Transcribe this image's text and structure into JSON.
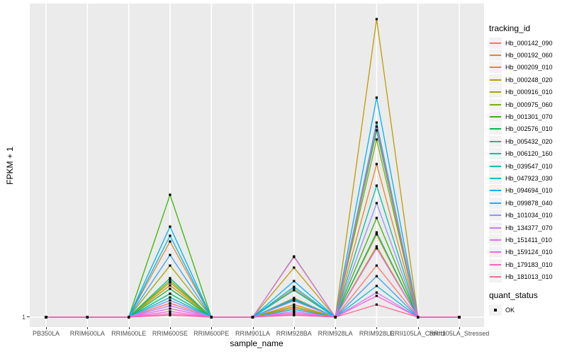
{
  "y_axis": {
    "title": "FPKM + 1",
    "tick_label": "1"
  },
  "x_axis": {
    "title": "sample_name"
  },
  "legend": {
    "tracking_title": "tracking_id",
    "quant_title": "quant_status",
    "quant_items": [
      {
        "label": "OK",
        "marker": "black-square"
      }
    ]
  },
  "colors": {
    "panel_background": "#EBEBEB",
    "gridline": "#FFFFFF",
    "tick_text": "#4D4D4D",
    "point": "#000000",
    "legend_key_background": "#F2F2F2"
  },
  "chart_data": {
    "type": "line",
    "title": "",
    "xlabel": "sample_name",
    "ylabel": "FPKM + 1",
    "ylim": [
      1,
      105
    ],
    "y_ticks": [
      1
    ],
    "grid": "vertical white gridline per category, horizontal white gridline at y=1, gray panel",
    "legend_position": "right",
    "point_shape": "filled black square (quant_status = OK)",
    "x": [
      "PB350LA",
      "RRIM600LA",
      "RRIM600LE",
      "RRIM600SE",
      "RRIM600PE",
      "RRIM901LA",
      "RRIM928BA",
      "RRIM928LA",
      "RRIM928LE",
      "RRII105LA_Control",
      "RRII105LA_Stressed"
    ],
    "series": [
      {
        "name": "Hb_000142_090",
        "color": "#F8766D",
        "values": [
          1,
          1,
          1,
          5.9,
          1,
          1,
          4.2,
          1,
          19.0,
          1,
          1
        ]
      },
      {
        "name": "Hb_000192_060",
        "color": "#EA8331",
        "values": [
          1,
          1,
          1,
          27.4,
          1,
          1,
          10.9,
          1,
          54.4,
          1,
          1
        ]
      },
      {
        "name": "Hb_000209_010",
        "color": "#D89000",
        "values": [
          1,
          1,
          1,
          12.1,
          1,
          1,
          5.4,
          1,
          29.9,
          1,
          1
        ]
      },
      {
        "name": "Hb_000248_020",
        "color": "#C09B00",
        "values": [
          1,
          1,
          1,
          13.1,
          1,
          1,
          18.3,
          1,
          105,
          1,
          1
        ]
      },
      {
        "name": "Hb_000916_010",
        "color": "#A3A500",
        "values": [
          1,
          1,
          1,
          19.0,
          1,
          1,
          7.7,
          1,
          25.7,
          1,
          1
        ]
      },
      {
        "name": "Hb_000975_060",
        "color": "#7CAE00",
        "values": [
          1,
          1,
          1,
          13.8,
          1,
          1,
          4.7,
          1,
          63.0,
          1,
          1
        ]
      },
      {
        "name": "Hb_001301_070",
        "color": "#39B600",
        "values": [
          1,
          1,
          1,
          43.7,
          1,
          1,
          22.2,
          1,
          35.6,
          1,
          1
        ]
      },
      {
        "name": "Hb_002576_010",
        "color": "#00BB4E",
        "values": [
          1,
          1,
          1,
          10.9,
          1,
          1,
          6.9,
          1,
          66.2,
          1,
          1
        ]
      },
      {
        "name": "Hb_005432_020",
        "color": "#00BF7D",
        "values": [
          1,
          1,
          1,
          9.2,
          1,
          1,
          7.2,
          1,
          30.6,
          1,
          1
        ]
      },
      {
        "name": "Hb_006120_160",
        "color": "#00C1A3",
        "values": [
          1,
          1,
          1,
          14.6,
          1,
          1,
          10.4,
          1,
          46.9,
          1,
          1
        ]
      },
      {
        "name": "Hb_039547_010",
        "color": "#00BFC4",
        "values": [
          1,
          1,
          1,
          7.9,
          1,
          1,
          3.7,
          1,
          11.9,
          1,
          1
        ]
      },
      {
        "name": "Hb_047923_030",
        "color": "#00BAE0",
        "values": [
          1,
          1,
          1,
          29.4,
          1,
          1,
          11.6,
          1,
          68.9,
          1,
          1
        ]
      },
      {
        "name": "Hb_094694_010",
        "color": "#00B0F6",
        "values": [
          1,
          1,
          1,
          32.6,
          1,
          1,
          13.6,
          1,
          77.6,
          1,
          1
        ]
      },
      {
        "name": "Hb_099878_040",
        "color": "#35A2FF",
        "values": [
          1,
          1,
          1,
          22.7,
          1,
          1,
          7.4,
          1,
          15.3,
          1,
          1
        ]
      },
      {
        "name": "Hb_101034_010",
        "color": "#9590FF",
        "values": [
          1,
          1,
          1,
          6.9,
          1,
          1,
          6.7,
          1,
          40.8,
          1,
          1
        ]
      },
      {
        "name": "Hb_134377_070",
        "color": "#C77CFF",
        "values": [
          1,
          1,
          1,
          5.0,
          1,
          1,
          3.0,
          1,
          9.6,
          1,
          1
        ]
      },
      {
        "name": "Hb_151411_010",
        "color": "#E76BF3",
        "values": [
          1,
          1,
          1,
          4.0,
          1,
          1,
          22.0,
          1,
          25.0,
          1,
          1
        ]
      },
      {
        "name": "Hb_159124_010",
        "color": "#FA62DB",
        "values": [
          1,
          1,
          1,
          3.0,
          1,
          1,
          2.5,
          1,
          8.4,
          1,
          1
        ]
      },
      {
        "name": "Hb_179183_010",
        "color": "#FF62BC",
        "values": [
          1,
          1,
          1,
          2.2,
          1,
          1,
          2.0,
          1,
          67.5,
          1,
          1
        ]
      },
      {
        "name": "Hb_181013_010",
        "color": "#FF6A98",
        "values": [
          1,
          1,
          1,
          1.7,
          1,
          1,
          1.7,
          1,
          5.4,
          1,
          1
        ]
      }
    ]
  }
}
